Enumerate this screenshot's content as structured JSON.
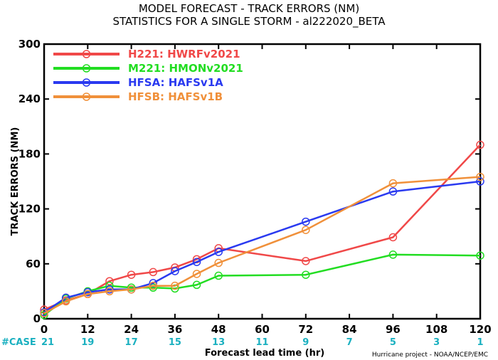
{
  "chart_data": {
    "type": "line",
    "title": "MODEL FORECAST - TRACK ERRORS (NM)",
    "subtitle": "STATISTICS FOR A SINGLE STORM - al222020_BETA",
    "xlabel": "Forecast lead time (hr)",
    "ylabel": "TRACK ERRORS (NM)",
    "xlim": [
      0,
      120
    ],
    "ylim": [
      0,
      300
    ],
    "x_ticks": [
      0,
      12,
      24,
      36,
      48,
      60,
      72,
      84,
      96,
      108,
      120
    ],
    "y_ticks": [
      0,
      60,
      120,
      180,
      240,
      300
    ],
    "grid": false,
    "legend_position": "top-left",
    "case_label": "#CASE",
    "case_counts": [
      {
        "x": 0,
        "n": "21"
      },
      {
        "x": 12,
        "n": "19"
      },
      {
        "x": 24,
        "n": "17"
      },
      {
        "x": 36,
        "n": "15"
      },
      {
        "x": 48,
        "n": "13"
      },
      {
        "x": 60,
        "n": "11"
      },
      {
        "x": 72,
        "n": "9"
      },
      {
        "x": 84,
        "n": "7"
      },
      {
        "x": 96,
        "n": "5"
      },
      {
        "x": 108,
        "n": "3"
      },
      {
        "x": 120,
        "n": "1"
      }
    ],
    "case_color": "#1ab0c0",
    "credit": "Hurricane project - NOAA/NCEP/EMC",
    "series": [
      {
        "name": "H221: HWRFv2021",
        "color": "#f04848",
        "x": [
          0,
          6,
          12,
          18,
          24,
          30,
          36,
          42,
          48,
          72,
          96,
          120
        ],
        "values": [
          10,
          20,
          27,
          41,
          48,
          51,
          56,
          65,
          77,
          63,
          89,
          190
        ]
      },
      {
        "name": "M221: HMONv2021",
        "color": "#22dd22",
        "x": [
          0,
          6,
          12,
          18,
          24,
          30,
          36,
          42,
          48,
          72,
          96,
          120
        ],
        "values": [
          4,
          22,
          30,
          36,
          34,
          34,
          33,
          37,
          47,
          48,
          70,
          69
        ]
      },
      {
        "name": "HFSA: HAFSv1A",
        "color": "#2a3af0",
        "x": [
          0,
          6,
          12,
          18,
          24,
          30,
          36,
          42,
          48,
          72,
          96,
          120
        ],
        "values": [
          7,
          23,
          29,
          32,
          32,
          39,
          52,
          62,
          73,
          106,
          139,
          150
        ]
      },
      {
        "name": "HFSB: HAFSv1B",
        "color": "#f0903a",
        "x": [
          0,
          6,
          12,
          18,
          24,
          30,
          36,
          42,
          48,
          72,
          96,
          120
        ],
        "values": [
          6,
          19,
          27,
          30,
          32,
          36,
          36,
          49,
          61,
          97,
          148,
          155
        ]
      }
    ]
  }
}
